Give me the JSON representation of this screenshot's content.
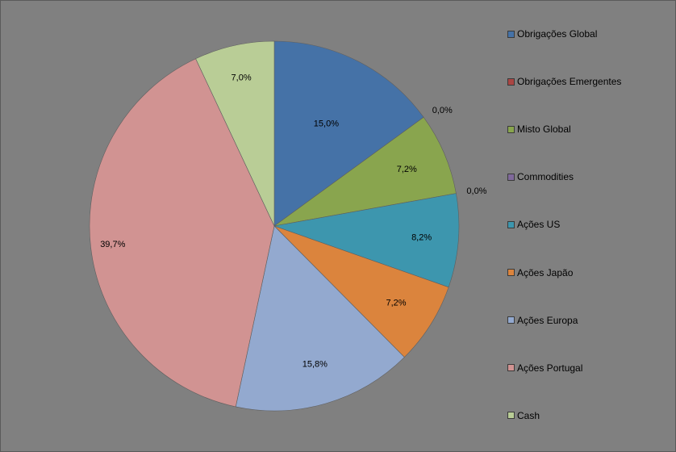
{
  "chart_data": {
    "type": "pie",
    "title": "",
    "categories": [
      "Obrigações Global",
      "Obrigações Emergentes",
      "Misto Global",
      "Commodities",
      "Ações US",
      "Ações Japão",
      "Ações Europa",
      "Ações Portugal",
      "Cash"
    ],
    "values": [
      15.0,
      0.0,
      7.2,
      0.0,
      8.2,
      7.2,
      15.8,
      39.7,
      7.0
    ],
    "data_labels": [
      "15,0%",
      "0,0%",
      "7,2%",
      "0,0%",
      "8,2%",
      "7,2%",
      "15,8%",
      "39,7%",
      "7,0%"
    ],
    "colors": [
      "#4572A7",
      "#AA4643",
      "#89A54E",
      "#80699B",
      "#3D96AE",
      "#DB843D",
      "#93A9CF",
      "#D19392",
      "#B9CD96"
    ],
    "legend_position": "right",
    "start_angle": "12 o'clock",
    "direction": "clockwise",
    "background_color": "#808080"
  }
}
